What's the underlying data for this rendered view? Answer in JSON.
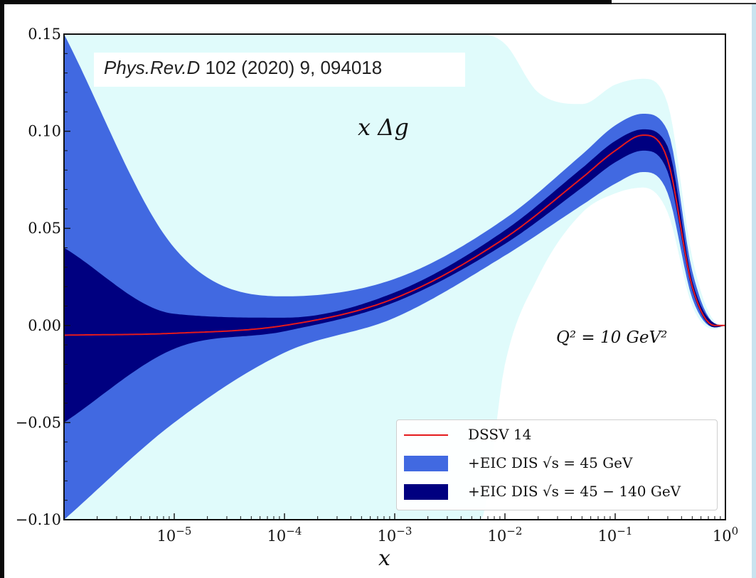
{
  "reference": {
    "journal": "Phys.Rev.D",
    "rest": " 102 (2020) 9, 094018"
  },
  "annotations": {
    "title": "x Δg",
    "scale": "Q² = 10 GeV²"
  },
  "colors": {
    "dssv": "#e41a1c",
    "band_45": "#4169e1",
    "band_45_140": "#000080",
    "band_outer": "#e0fbfb"
  },
  "chart_data": {
    "type": "area",
    "title": "x Δg",
    "xlabel": "x",
    "ylabel": "",
    "xscale": "log",
    "xlim": [
      1e-06,
      1
    ],
    "ylim": [
      -0.1,
      0.15
    ],
    "x_ticks": [
      "10⁻⁵",
      "10⁻⁴",
      "10⁻³",
      "10⁻²",
      "10⁻¹",
      "10⁰"
    ],
    "y_ticks": [
      "−0.10",
      "−0.05",
      "0.00",
      "0.05",
      "0.10",
      "0.15"
    ],
    "legend_position": "lower-right",
    "x": [
      1e-06,
      1e-05,
      0.0001,
      0.001,
      0.01,
      0.05,
      0.1,
      0.18,
      0.3,
      0.5,
      0.8,
      1
    ],
    "series": [
      {
        "name": "DSSV 14",
        "kind": "line",
        "y": [
          -0.005,
          -0.004,
          0.0,
          0.014,
          0.045,
          0.076,
          0.09,
          0.098,
          0.085,
          0.02,
          0.0,
          0.0
        ]
      },
      {
        "name": "+EIC DIS √s = 45 GeV",
        "kind": "band",
        "lower": [
          -0.1,
          -0.05,
          -0.014,
          0.004,
          0.036,
          0.062,
          0.073,
          0.079,
          0.068,
          0.014,
          -0.001,
          0.0
        ],
        "upper": [
          0.15,
          0.04,
          0.015,
          0.024,
          0.055,
          0.088,
          0.103,
          0.109,
          0.1,
          0.028,
          0.001,
          0.0
        ]
      },
      {
        "name": "+EIC DIS √s = 45 − 140 GeV",
        "kind": "band",
        "lower": [
          -0.05,
          -0.012,
          -0.003,
          0.012,
          0.042,
          0.071,
          0.084,
          0.09,
          0.079,
          0.018,
          -0.001,
          0.0
        ],
        "upper": [
          0.04,
          0.006,
          0.004,
          0.017,
          0.049,
          0.081,
          0.095,
          0.101,
          0.092,
          0.023,
          0.001,
          0.0
        ]
      }
    ]
  },
  "legend": [
    {
      "label": "DSSV 14"
    },
    {
      "label": "+EIC DIS √s = 45 GeV"
    },
    {
      "label": "+EIC DIS √s = 45 − 140 GeV"
    }
  ]
}
